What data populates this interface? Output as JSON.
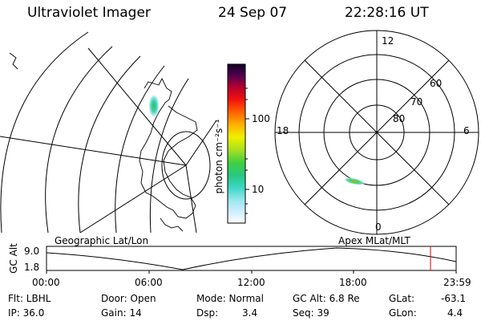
{
  "header": {
    "instrument": "Ultraviolet Imager",
    "date": "24 Sep 07",
    "time": "22:28:16 UT"
  },
  "colorbar": {
    "unit_label": "photon cm⁻²s⁻¹",
    "tick_labels": [
      "100",
      "10"
    ]
  },
  "polar_plot": {
    "mlt_labels": [
      "12",
      "18",
      "6",
      "0"
    ],
    "lat_labels": [
      "60",
      "70",
      "80"
    ]
  },
  "orbit_plot": {
    "ylabel": "GC Alt",
    "y_ticks": [
      "9.0",
      "1.8"
    ],
    "left_title": "Geographic Lat/Lon",
    "right_title": "Apex MLat/MLT",
    "x_ticks": [
      "00:00",
      "06:00",
      "12:00",
      "18:00",
      "23:59"
    ],
    "marker_color": "#e00000"
  },
  "status": {
    "flt": "Flt: LBHL",
    "ip": "IP: 36.0",
    "door": "Door: Open",
    "gain": "Gain: 14",
    "mode": "Mode: Normal",
    "dsp_label": "Dsp:",
    "dsp_value": "3.4",
    "gc_alt": "GC Alt: 6.8 Re",
    "seq": "Seq: 39",
    "glat_label": "GLat:",
    "glat_value": "-63.1",
    "glon_label": "GLon:",
    "glon_value": "4.4"
  }
}
